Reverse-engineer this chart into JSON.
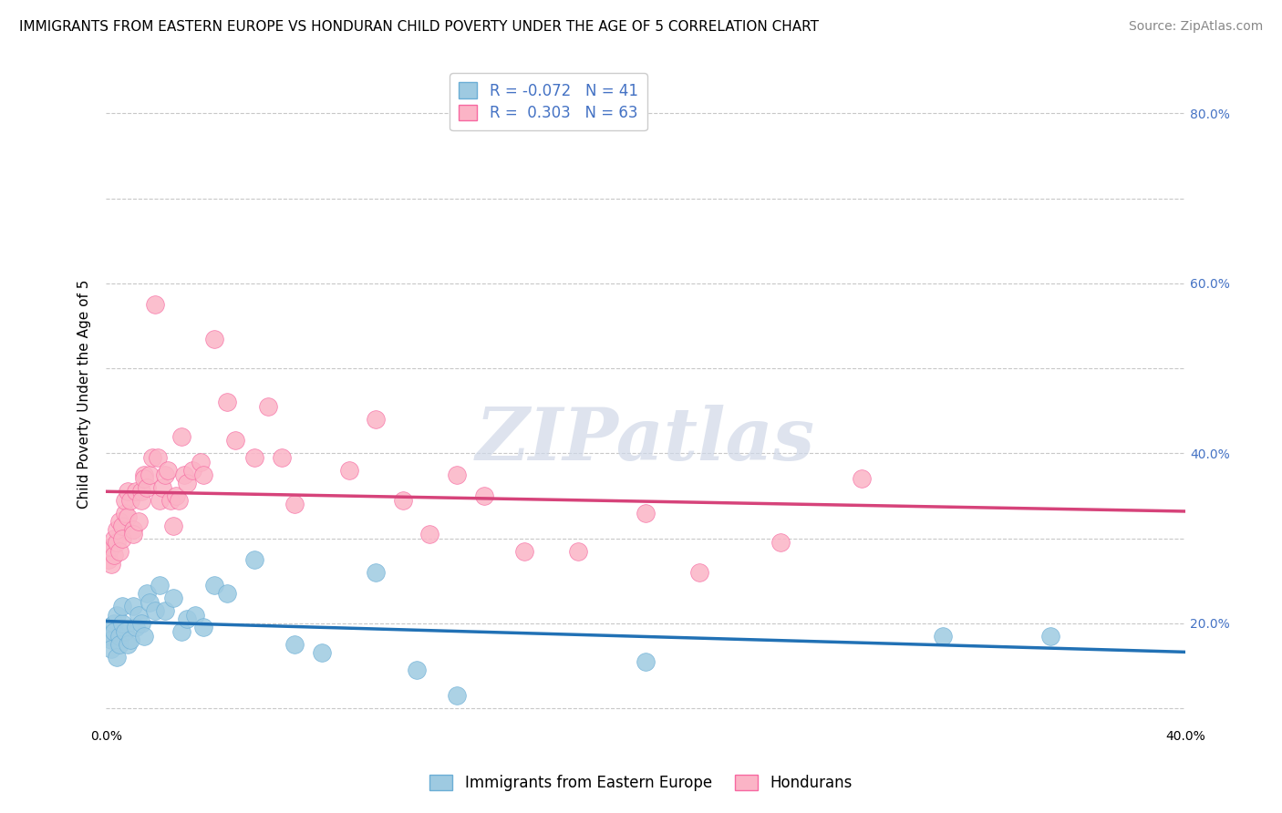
{
  "title": "IMMIGRANTS FROM EASTERN EUROPE VS HONDURAN CHILD POVERTY UNDER THE AGE OF 5 CORRELATION CHART",
  "source": "Source: ZipAtlas.com",
  "ylabel": "Child Poverty Under the Age of 5",
  "watermark": "ZIPatlas",
  "xlim": [
    0.0,
    0.4
  ],
  "ylim": [
    0.08,
    0.86
  ],
  "xticks": [
    0.0,
    0.05,
    0.1,
    0.15,
    0.2,
    0.25,
    0.3,
    0.35,
    0.4
  ],
  "yticks": [
    0.1,
    0.2,
    0.3,
    0.4,
    0.5,
    0.6,
    0.7,
    0.8
  ],
  "blue_R": -0.072,
  "blue_N": 41,
  "pink_R": 0.303,
  "pink_N": 63,
  "blue_color": "#9ecae1",
  "pink_color": "#fbb4c6",
  "blue_edge_color": "#6baed6",
  "pink_edge_color": "#f768a1",
  "blue_line_color": "#2171b5",
  "pink_line_color": "#d6437a",
  "blue_scatter": [
    [
      0.001,
      0.195
    ],
    [
      0.001,
      0.185
    ],
    [
      0.002,
      0.18
    ],
    [
      0.002,
      0.17
    ],
    [
      0.003,
      0.2
    ],
    [
      0.003,
      0.19
    ],
    [
      0.004,
      0.21
    ],
    [
      0.004,
      0.16
    ],
    [
      0.005,
      0.185
    ],
    [
      0.005,
      0.175
    ],
    [
      0.006,
      0.2
    ],
    [
      0.006,
      0.22
    ],
    [
      0.007,
      0.19
    ],
    [
      0.008,
      0.175
    ],
    [
      0.009,
      0.18
    ],
    [
      0.01,
      0.22
    ],
    [
      0.011,
      0.195
    ],
    [
      0.012,
      0.21
    ],
    [
      0.013,
      0.2
    ],
    [
      0.014,
      0.185
    ],
    [
      0.015,
      0.235
    ],
    [
      0.016,
      0.225
    ],
    [
      0.018,
      0.215
    ],
    [
      0.02,
      0.245
    ],
    [
      0.022,
      0.215
    ],
    [
      0.025,
      0.23
    ],
    [
      0.028,
      0.19
    ],
    [
      0.03,
      0.205
    ],
    [
      0.033,
      0.21
    ],
    [
      0.036,
      0.195
    ],
    [
      0.04,
      0.245
    ],
    [
      0.045,
      0.235
    ],
    [
      0.055,
      0.275
    ],
    [
      0.07,
      0.175
    ],
    [
      0.08,
      0.165
    ],
    [
      0.1,
      0.26
    ],
    [
      0.115,
      0.145
    ],
    [
      0.13,
      0.115
    ],
    [
      0.2,
      0.155
    ],
    [
      0.31,
      0.185
    ],
    [
      0.35,
      0.185
    ]
  ],
  "pink_scatter": [
    [
      0.001,
      0.275
    ],
    [
      0.001,
      0.285
    ],
    [
      0.002,
      0.27
    ],
    [
      0.002,
      0.29
    ],
    [
      0.003,
      0.3
    ],
    [
      0.003,
      0.28
    ],
    [
      0.004,
      0.295
    ],
    [
      0.004,
      0.31
    ],
    [
      0.005,
      0.285
    ],
    [
      0.005,
      0.32
    ],
    [
      0.006,
      0.315
    ],
    [
      0.006,
      0.3
    ],
    [
      0.007,
      0.33
    ],
    [
      0.007,
      0.345
    ],
    [
      0.008,
      0.325
    ],
    [
      0.008,
      0.355
    ],
    [
      0.009,
      0.345
    ],
    [
      0.01,
      0.31
    ],
    [
      0.01,
      0.305
    ],
    [
      0.011,
      0.355
    ],
    [
      0.012,
      0.32
    ],
    [
      0.013,
      0.355
    ],
    [
      0.013,
      0.345
    ],
    [
      0.014,
      0.375
    ],
    [
      0.014,
      0.37
    ],
    [
      0.015,
      0.36
    ],
    [
      0.016,
      0.375
    ],
    [
      0.017,
      0.395
    ],
    [
      0.018,
      0.575
    ],
    [
      0.019,
      0.395
    ],
    [
      0.02,
      0.345
    ],
    [
      0.021,
      0.36
    ],
    [
      0.022,
      0.375
    ],
    [
      0.023,
      0.38
    ],
    [
      0.024,
      0.345
    ],
    [
      0.025,
      0.315
    ],
    [
      0.026,
      0.35
    ],
    [
      0.027,
      0.345
    ],
    [
      0.028,
      0.42
    ],
    [
      0.029,
      0.375
    ],
    [
      0.03,
      0.365
    ],
    [
      0.032,
      0.38
    ],
    [
      0.035,
      0.39
    ],
    [
      0.036,
      0.375
    ],
    [
      0.04,
      0.535
    ],
    [
      0.045,
      0.46
    ],
    [
      0.048,
      0.415
    ],
    [
      0.055,
      0.395
    ],
    [
      0.06,
      0.455
    ],
    [
      0.065,
      0.395
    ],
    [
      0.07,
      0.34
    ],
    [
      0.09,
      0.38
    ],
    [
      0.1,
      0.44
    ],
    [
      0.11,
      0.345
    ],
    [
      0.12,
      0.305
    ],
    [
      0.13,
      0.375
    ],
    [
      0.14,
      0.35
    ],
    [
      0.155,
      0.285
    ],
    [
      0.175,
      0.285
    ],
    [
      0.2,
      0.33
    ],
    [
      0.22,
      0.26
    ],
    [
      0.25,
      0.295
    ],
    [
      0.28,
      0.37
    ]
  ],
  "legend_label_blue": "Immigrants from Eastern Europe",
  "legend_label_pink": "Hondurans",
  "title_fontsize": 11,
  "axis_label_fontsize": 11,
  "tick_fontsize": 10,
  "legend_fontsize": 12,
  "source_fontsize": 10,
  "background_color": "#ffffff",
  "grid_color": "#c8c8c8",
  "tick_color": "#4472c4",
  "axis_color": "#c8c8c8"
}
